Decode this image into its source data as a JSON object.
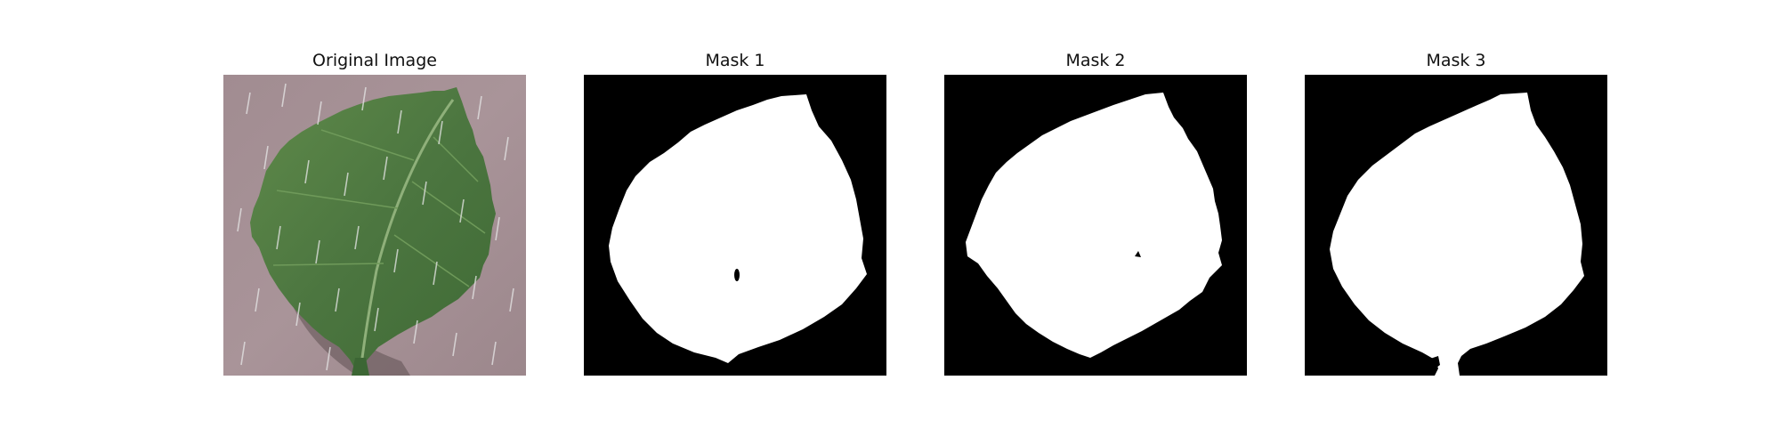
{
  "figure": {
    "panels": [
      {
        "title": "Original Image",
        "content": "photo of a green serrated leaf on a gray-mauve surface with white streak noise"
      },
      {
        "title": "Mask 1",
        "content": "white leaf silhouette on black, small black hole near center"
      },
      {
        "title": "Mask 2",
        "content": "white leaf silhouette on black, rough noisy edges, tiny speck near center"
      },
      {
        "title": "Mask 3",
        "content": "white leaf silhouette on black, stem region at bottom edge"
      }
    ],
    "colors": {
      "background": "#ffffff",
      "mask_foreground": "#ffffff",
      "mask_background": "#000000",
      "leaf_green": "#4f7a3f",
      "surface": "#a49095"
    }
  }
}
